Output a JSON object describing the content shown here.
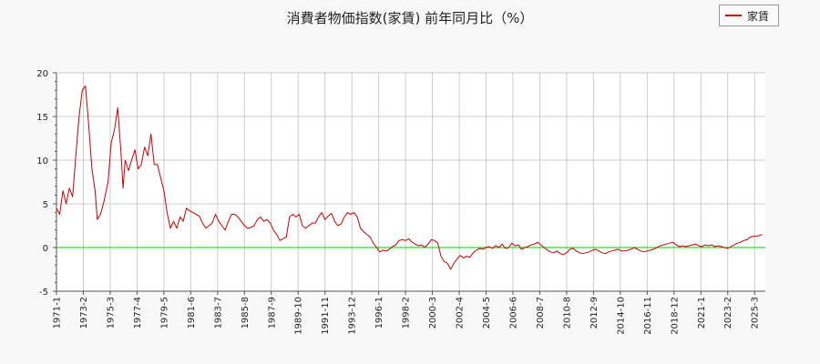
{
  "chart_data": {
    "type": "line",
    "title": "消費者物価指数(家賃) 前年同月比（%）",
    "xlabel": "",
    "ylabel": "",
    "ylim": [
      -5,
      20
    ],
    "yticks": [
      -5,
      0,
      5,
      10,
      15,
      20
    ],
    "xlim": [
      "1971-01",
      "2026-01"
    ],
    "xtick_labels": [
      "1971-1",
      "1973-2",
      "1975-3",
      "1977-4",
      "1979-5",
      "1981-6",
      "1983-7",
      "1985-8",
      "1987-9",
      "1989-10",
      "1991-11",
      "1993-12",
      "1996-1",
      "1998-2",
      "2000-3",
      "2002-4",
      "2004-5",
      "2006-6",
      "2008-7",
      "2010-8",
      "2012-9",
      "2014-10",
      "2016-11",
      "2018-12",
      "2021-1",
      "2023-2",
      "2025-3"
    ],
    "grid": true,
    "legend": "top-right",
    "reference_line": {
      "y": 0,
      "color": "#00cc00"
    },
    "series": [
      {
        "name": "家賃",
        "color": "#cc0000",
        "points": [
          [
            "1971-01",
            4.5
          ],
          [
            "1971-04",
            3.8
          ],
          [
            "1971-07",
            6.5
          ],
          [
            "1971-10",
            5.0
          ],
          [
            "1972-01",
            6.8
          ],
          [
            "1972-04",
            5.8
          ],
          [
            "1972-07",
            10.5
          ],
          [
            "1972-10",
            15.0
          ],
          [
            "1973-01",
            18.0
          ],
          [
            "1973-04",
            18.5
          ],
          [
            "1973-07",
            14.0
          ],
          [
            "1973-10",
            9.0
          ],
          [
            "1974-01",
            6.5
          ],
          [
            "1974-03",
            3.2
          ],
          [
            "1974-06",
            3.8
          ],
          [
            "1974-09",
            5.2
          ],
          [
            "1975-01",
            7.5
          ],
          [
            "1975-04",
            12.0
          ],
          [
            "1975-07",
            13.5
          ],
          [
            "1975-10",
            16.0
          ],
          [
            "1976-01",
            11.0
          ],
          [
            "1976-03",
            6.8
          ],
          [
            "1976-05",
            10.0
          ],
          [
            "1976-08",
            8.8
          ],
          [
            "1976-11",
            10.0
          ],
          [
            "1977-02",
            11.2
          ],
          [
            "1977-05",
            9.0
          ],
          [
            "1977-08",
            9.5
          ],
          [
            "1977-11",
            11.5
          ],
          [
            "1978-02",
            10.5
          ],
          [
            "1978-05",
            13.0
          ],
          [
            "1978-08",
            9.5
          ],
          [
            "1978-11",
            9.5
          ],
          [
            "1979-02",
            8.0
          ],
          [
            "1979-05",
            6.5
          ],
          [
            "1979-08",
            4.0
          ],
          [
            "1979-11",
            2.2
          ],
          [
            "1980-02",
            3.0
          ],
          [
            "1980-05",
            2.2
          ],
          [
            "1980-08",
            3.5
          ],
          [
            "1980-11",
            3.0
          ],
          [
            "1981-02",
            4.5
          ],
          [
            "1981-05",
            4.2
          ],
          [
            "1981-08",
            4.0
          ],
          [
            "1981-11",
            3.8
          ],
          [
            "1982-02",
            3.6
          ],
          [
            "1982-05",
            2.8
          ],
          [
            "1982-08",
            2.2
          ],
          [
            "1982-11",
            2.5
          ],
          [
            "1983-02",
            2.8
          ],
          [
            "1983-05",
            3.8
          ],
          [
            "1983-08",
            3.0
          ],
          [
            "1983-11",
            2.5
          ],
          [
            "1984-02",
            2.0
          ],
          [
            "1984-05",
            3.0
          ],
          [
            "1984-08",
            3.8
          ],
          [
            "1984-11",
            3.8
          ],
          [
            "1985-02",
            3.5
          ],
          [
            "1985-05",
            3.0
          ],
          [
            "1985-08",
            2.5
          ],
          [
            "1985-11",
            2.2
          ],
          [
            "1986-02",
            2.3
          ],
          [
            "1986-05",
            2.5
          ],
          [
            "1986-08",
            3.2
          ],
          [
            "1986-11",
            3.5
          ],
          [
            "1987-02",
            3.0
          ],
          [
            "1987-05",
            3.2
          ],
          [
            "1987-08",
            2.8
          ],
          [
            "1987-11",
            2.0
          ],
          [
            "1988-02",
            1.5
          ],
          [
            "1988-05",
            0.8
          ],
          [
            "1988-08",
            1.0
          ],
          [
            "1988-11",
            1.2
          ],
          [
            "1989-02",
            3.5
          ],
          [
            "1989-05",
            3.8
          ],
          [
            "1989-08",
            3.5
          ],
          [
            "1989-11",
            3.8
          ],
          [
            "1990-02",
            2.5
          ],
          [
            "1990-05",
            2.2
          ],
          [
            "1990-08",
            2.5
          ],
          [
            "1990-11",
            2.8
          ],
          [
            "1991-02",
            2.8
          ],
          [
            "1991-05",
            3.5
          ],
          [
            "1991-08",
            4.0
          ],
          [
            "1991-11",
            3.2
          ],
          [
            "1992-02",
            3.6
          ],
          [
            "1992-05",
            3.9
          ],
          [
            "1992-08",
            3.0
          ],
          [
            "1992-11",
            2.5
          ],
          [
            "1993-02",
            2.7
          ],
          [
            "1993-05",
            3.5
          ],
          [
            "1993-08",
            4.0
          ],
          [
            "1993-11",
            3.8
          ],
          [
            "1994-02",
            4.0
          ],
          [
            "1994-05",
            3.5
          ],
          [
            "1994-08",
            2.2
          ],
          [
            "1994-11",
            1.8
          ],
          [
            "1995-02",
            1.5
          ],
          [
            "1995-05",
            1.2
          ],
          [
            "1995-08",
            0.5
          ],
          [
            "1995-11",
            0.0
          ],
          [
            "1996-02",
            -0.5
          ],
          [
            "1996-05",
            -0.3
          ],
          [
            "1996-08",
            -0.4
          ],
          [
            "1996-11",
            -0.2
          ],
          [
            "1997-02",
            0.1
          ],
          [
            "1997-05",
            0.3
          ],
          [
            "1997-08",
            0.8
          ],
          [
            "1997-11",
            0.9
          ],
          [
            "1998-02",
            0.8
          ],
          [
            "1998-05",
            1.0
          ],
          [
            "1998-08",
            0.6
          ],
          [
            "1998-11",
            0.4
          ],
          [
            "1999-02",
            0.2
          ],
          [
            "1999-05",
            0.3
          ],
          [
            "1999-08",
            0.0
          ],
          [
            "1999-11",
            0.4
          ],
          [
            "2000-02",
            0.9
          ],
          [
            "2000-05",
            0.8
          ],
          [
            "2000-08",
            0.5
          ],
          [
            "2000-11",
            -1.0
          ],
          [
            "2001-02",
            -1.6
          ],
          [
            "2001-05",
            -1.8
          ],
          [
            "2001-08",
            -2.5
          ],
          [
            "2001-11",
            -1.8
          ],
          [
            "2002-02",
            -1.3
          ],
          [
            "2002-05",
            -0.9
          ],
          [
            "2002-08",
            -1.2
          ],
          [
            "2002-11",
            -1.0
          ],
          [
            "2003-02",
            -1.1
          ],
          [
            "2003-05",
            -0.6
          ],
          [
            "2003-08",
            -0.3
          ],
          [
            "2003-11",
            -0.1
          ],
          [
            "2004-02",
            -0.2
          ],
          [
            "2004-05",
            0.0
          ],
          [
            "2004-08",
            0.1
          ],
          [
            "2004-11",
            -0.1
          ],
          [
            "2005-02",
            0.2
          ],
          [
            "2005-05",
            0.0
          ],
          [
            "2005-08",
            0.4
          ],
          [
            "2005-11",
            -0.1
          ],
          [
            "2006-02",
            0.0
          ],
          [
            "2006-05",
            0.5
          ],
          [
            "2006-08",
            0.2
          ],
          [
            "2006-11",
            0.3
          ],
          [
            "2007-02",
            -0.2
          ],
          [
            "2007-05",
            0.0
          ],
          [
            "2007-08",
            0.1
          ],
          [
            "2007-11",
            0.3
          ],
          [
            "2008-02",
            0.4
          ],
          [
            "2008-05",
            0.6
          ],
          [
            "2008-08",
            0.3
          ],
          [
            "2008-11",
            0.0
          ],
          [
            "2009-02",
            -0.3
          ],
          [
            "2009-05",
            -0.5
          ],
          [
            "2009-08",
            -0.6
          ],
          [
            "2009-11",
            -0.4
          ],
          [
            "2010-02",
            -0.7
          ],
          [
            "2010-05",
            -0.8
          ],
          [
            "2010-08",
            -0.6
          ],
          [
            "2010-11",
            -0.2
          ],
          [
            "2011-02",
            -0.1
          ],
          [
            "2011-05",
            -0.4
          ],
          [
            "2011-08",
            -0.6
          ],
          [
            "2011-11",
            -0.7
          ],
          [
            "2012-02",
            -0.6
          ],
          [
            "2012-05",
            -0.5
          ],
          [
            "2012-08",
            -0.3
          ],
          [
            "2012-11",
            -0.2
          ],
          [
            "2013-02",
            -0.4
          ],
          [
            "2013-05",
            -0.6
          ],
          [
            "2013-08",
            -0.7
          ],
          [
            "2013-11",
            -0.5
          ],
          [
            "2014-02",
            -0.4
          ],
          [
            "2014-05",
            -0.3
          ],
          [
            "2014-08",
            -0.2
          ],
          [
            "2014-11",
            -0.4
          ],
          [
            "2015-02",
            -0.4
          ],
          [
            "2015-05",
            -0.3
          ],
          [
            "2015-08",
            -0.2
          ],
          [
            "2015-11",
            0.0
          ],
          [
            "2016-02",
            -0.2
          ],
          [
            "2016-05",
            -0.4
          ],
          [
            "2016-08",
            -0.5
          ],
          [
            "2016-11",
            -0.4
          ],
          [
            "2017-02",
            -0.3
          ],
          [
            "2017-05",
            -0.2
          ],
          [
            "2017-08",
            0.0
          ],
          [
            "2017-11",
            0.2
          ],
          [
            "2018-02",
            0.3
          ],
          [
            "2018-05",
            0.4
          ],
          [
            "2018-08",
            0.5
          ],
          [
            "2018-11",
            0.6
          ],
          [
            "2019-02",
            0.3
          ],
          [
            "2019-05",
            0.1
          ],
          [
            "2019-08",
            0.2
          ],
          [
            "2019-11",
            0.1
          ],
          [
            "2020-02",
            0.2
          ],
          [
            "2020-05",
            0.3
          ],
          [
            "2020-08",
            0.4
          ],
          [
            "2020-11",
            0.2
          ],
          [
            "2021-02",
            0.1
          ],
          [
            "2021-05",
            0.3
          ],
          [
            "2021-08",
            0.2
          ],
          [
            "2021-11",
            0.3
          ],
          [
            "2022-02",
            0.1
          ],
          [
            "2022-05",
            0.2
          ],
          [
            "2022-08",
            0.1
          ],
          [
            "2022-11",
            0.0
          ],
          [
            "2023-02",
            -0.1
          ],
          [
            "2023-05",
            0.1
          ],
          [
            "2023-08",
            0.3
          ],
          [
            "2023-11",
            0.5
          ],
          [
            "2024-02",
            0.6
          ],
          [
            "2024-05",
            0.8
          ],
          [
            "2024-08",
            0.9
          ],
          [
            "2024-11",
            1.2
          ],
          [
            "2025-02",
            1.3
          ],
          [
            "2025-05",
            1.3
          ],
          [
            "2025-08",
            1.4
          ],
          [
            "2025-10",
            1.5
          ]
        ]
      }
    ]
  }
}
